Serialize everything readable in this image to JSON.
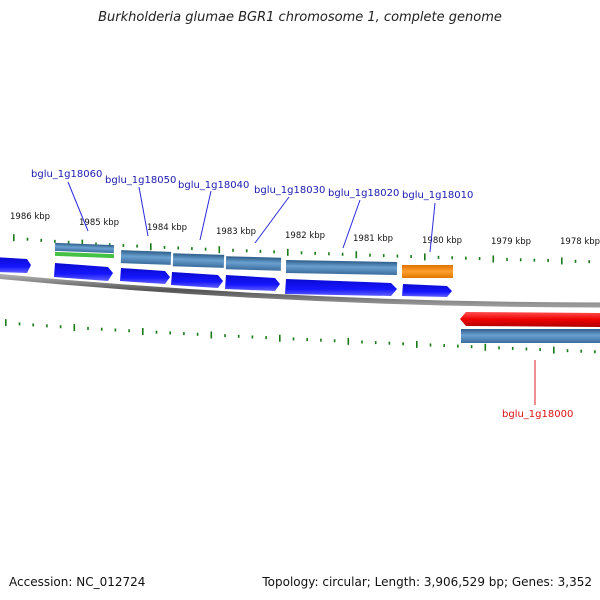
{
  "title": "Burkholderia glumae BGR1 chromosome 1, complete genome",
  "footer": {
    "accession": "Accession: NC_012724",
    "summary": "Topology: circular; Length: 3,906,529 bp; Genes: 3,352"
  },
  "colors": {
    "backbone": "#777777",
    "tick": "#1a7a1a",
    "forward_cds": "#1010e8",
    "reverse_cds": "#ee1111",
    "gene": "#4a7fb0",
    "label_forward": "#1a1ab0",
    "label_reverse": "#dd1111",
    "leader_forward": "#2a2ae0",
    "leader_reverse": "#dd2222",
    "green_feature": "#44c044",
    "orange_feature": "#ff8c00"
  },
  "ticks_outer": [
    "1986 kbp",
    "1985 kbp",
    "1984 kbp",
    "1983 kbp",
    "1982 kbp",
    "1981 kbp",
    "1980 kbp",
    "1979 kbp",
    "1978 kbp"
  ],
  "gene_labels": [
    {
      "name": "bglu_1g18060",
      "strand": "forward"
    },
    {
      "name": "bglu_1g18050",
      "strand": "forward"
    },
    {
      "name": "bglu_1g18040",
      "strand": "forward"
    },
    {
      "name": "bglu_1g18030",
      "strand": "forward"
    },
    {
      "name": "bglu_1g18020",
      "strand": "forward"
    },
    {
      "name": "bglu_1g18010",
      "strand": "forward"
    },
    {
      "name": "bglu_1g18000",
      "strand": "reverse"
    }
  ]
}
